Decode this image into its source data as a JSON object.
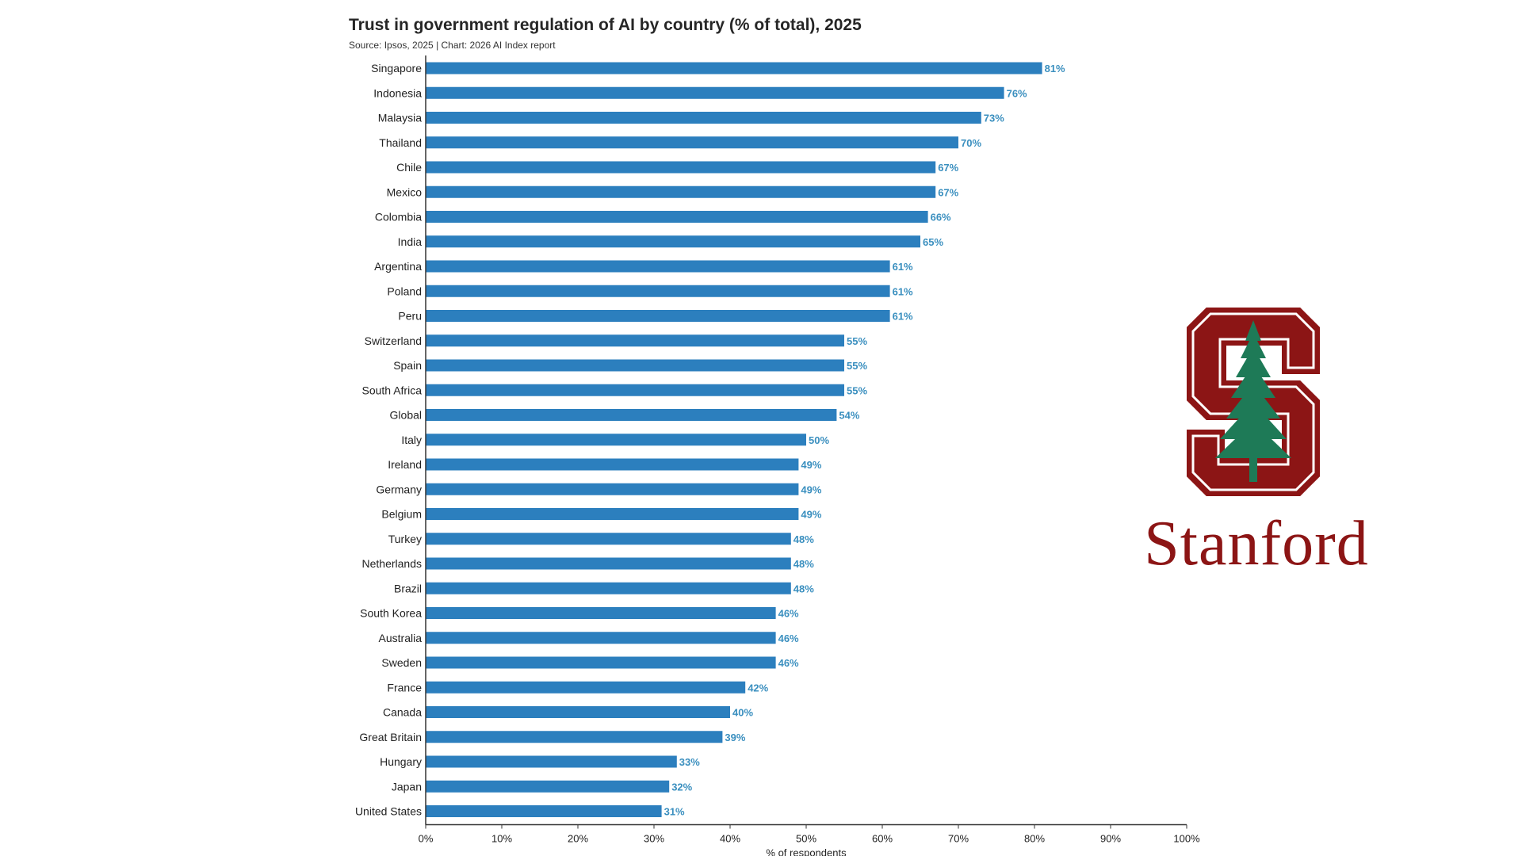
{
  "chart_data": {
    "type": "bar",
    "orientation": "horizontal",
    "title": "Trust in government regulation of AI by country (% of total), 2025",
    "subtitle": "Source: Ipsos, 2025 | Chart: 2026 AI Index report",
    "xlabel": "% of respondents",
    "ylabel": "",
    "xlim": [
      0,
      100
    ],
    "xticks": [
      0,
      10,
      20,
      30,
      40,
      50,
      60,
      70,
      80,
      90,
      100
    ],
    "value_suffix": "%",
    "categories": [
      "Singapore",
      "Indonesia",
      "Malaysia",
      "Thailand",
      "Chile",
      "Mexico",
      "Colombia",
      "India",
      "Argentina",
      "Poland",
      "Peru",
      "Switzerland",
      "Spain",
      "South Africa",
      "Global",
      "Italy",
      "Ireland",
      "Germany",
      "Belgium",
      "Turkey",
      "Netherlands",
      "Brazil",
      "South Korea",
      "Australia",
      "Sweden",
      "France",
      "Canada",
      "Great Britain",
      "Hungary",
      "Japan",
      "United States"
    ],
    "values": [
      81,
      76,
      73,
      70,
      67,
      67,
      66,
      65,
      61,
      61,
      61,
      55,
      55,
      55,
      54,
      50,
      49,
      49,
      49,
      48,
      48,
      48,
      46,
      46,
      46,
      42,
      40,
      39,
      33,
      32,
      31
    ],
    "bar_color": "#2c7fbe",
    "value_label_color": "#3a8fbf",
    "grid": false
  },
  "logo": {
    "wordmark": "Stanford",
    "color": "#8c1515",
    "tree_color": "#1e7a57"
  }
}
